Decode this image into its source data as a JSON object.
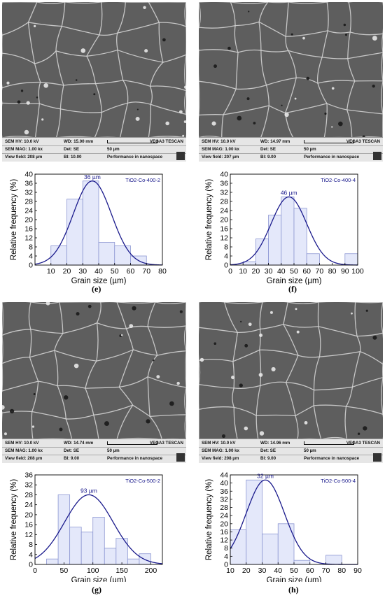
{
  "panels": [
    {
      "id": "e",
      "label": "(e)",
      "sem_info": {
        "hv": "SEM HV: 10.0 kV",
        "wd": "WD: 15.00 mm",
        "mag": "SEM MAG: 1.00 kx",
        "det": "Det: SE",
        "vf": "View field: 208 µm",
        "bi": "BI: 10.00",
        "scale": "50 µm",
        "brand": "VEGA3 TESCAN",
        "footer": "Performance in nanospace"
      },
      "chart_data": {
        "type": "bar",
        "sample": "TiO2-Co-400-2",
        "peak_label": "36 µm",
        "xlabel": "Grain size (µm)",
        "ylabel": "Relative frequency (%)",
        "xlim": [
          0,
          80
        ],
        "ylim": [
          0,
          40
        ],
        "xticks": [
          10,
          20,
          30,
          40,
          50,
          60,
          70,
          80
        ],
        "yticks": [
          0,
          4,
          8,
          12,
          16,
          20,
          24,
          28,
          32,
          36,
          40
        ],
        "bin_edges": [
          10,
          20,
          30,
          40,
          50,
          60,
          70
        ],
        "values": [
          8.5,
          29,
          37,
          10,
          8.5,
          4
        ],
        "fit_mean": 36,
        "fit_sd": 12,
        "fit_peak": 37
      }
    },
    {
      "id": "f",
      "label": "(f)",
      "sem_info": {
        "hv": "SEM HV: 10.0 kV",
        "wd": "WD: 14.97 mm",
        "mag": "SEM MAG: 1.00 kx",
        "det": "Det: SE",
        "vf": "View field: 207 µm",
        "bi": "BI: 9.00",
        "scale": "50 µm",
        "brand": "VEGA3 TESCAN",
        "footer": "Performance in nanospace"
      },
      "chart_data": {
        "type": "bar",
        "sample": "TiO2-Co-400-4",
        "peak_label": "46 µm",
        "xlabel": "Grain size (µm)",
        "ylabel": "Relative frequency (%)",
        "xlim": [
          0,
          100
        ],
        "ylim": [
          0,
          40
        ],
        "xticks": [
          0,
          10,
          20,
          30,
          40,
          50,
          60,
          70,
          80,
          90,
          100
        ],
        "yticks": [
          0,
          4,
          8,
          12,
          16,
          20,
          24,
          28,
          32,
          36,
          40
        ],
        "bin_edges": [
          10,
          20,
          30,
          40,
          50,
          60,
          70,
          80,
          90,
          100
        ],
        "values": [
          1.5,
          11.5,
          22,
          30,
          25,
          5,
          0,
          0,
          5
        ],
        "fit_mean": 46,
        "fit_sd": 14,
        "fit_peak": 30
      }
    },
    {
      "id": "g",
      "label": "(g)",
      "sem_info": {
        "hv": "SEM HV: 10.0 kV",
        "wd": "WD: 14.74 mm",
        "mag": "SEM MAG: 1.00 kx",
        "det": "Det: SE",
        "vf": "View field: 208 µm",
        "bi": "BI: 9.00",
        "scale": "50 µm",
        "brand": "VEGA3 TESCAN",
        "footer": "Performance in nanospace"
      },
      "chart_data": {
        "type": "bar",
        "sample": "TiO2-Co-500-2",
        "peak_label": "93 µm",
        "xlabel": "Grain size (µm)",
        "ylabel": "Relative frequency (%)",
        "xlim": [
          0,
          220
        ],
        "ylim": [
          0,
          36
        ],
        "xticks": [
          0,
          50,
          100,
          150,
          200
        ],
        "yticks": [
          0,
          4,
          8,
          12,
          16,
          20,
          24,
          28,
          32,
          36
        ],
        "bin_edges": [
          20,
          40,
          60,
          80,
          100,
          120,
          140,
          160,
          180,
          200
        ],
        "values": [
          2.2,
          28,
          15,
          13,
          19,
          6.5,
          10.5,
          2.2,
          4.3
        ],
        "fit_mean": 93,
        "fit_sd": 42,
        "fit_peak": 28
      }
    },
    {
      "id": "h",
      "label": "(h)",
      "sem_info": {
        "hv": "SEM HV: 10.0 kV",
        "wd": "WD: 14.96 mm",
        "mag": "SEM MAG: 1.00 kx",
        "det": "Det: SE",
        "vf": "View field: 208 µm",
        "bi": "BI: 9.00",
        "scale": "50 µm",
        "brand": "VEGA3 TESCAN",
        "footer": "Performance in nanospace"
      },
      "chart_data": {
        "type": "bar",
        "sample": "TiO2-Co-500-4",
        "peak_label": "32 µm",
        "xlabel": "Grain size (µm)",
        "ylabel": "Relative frequency (%)",
        "xlim": [
          10,
          90
        ],
        "ylim": [
          0,
          44
        ],
        "xticks": [
          10,
          20,
          30,
          40,
          50,
          60,
          70,
          80,
          90
        ],
        "yticks": [
          0,
          4,
          8,
          12,
          16,
          20,
          24,
          28,
          32,
          36,
          40,
          44
        ],
        "bin_edges": [
          10,
          20,
          30,
          40,
          50,
          60,
          70,
          80
        ],
        "values": [
          17,
          41.5,
          15,
          20,
          2,
          0,
          4.5
        ],
        "fit_mean": 32,
        "fit_sd": 12,
        "fit_peak": 41.5
      }
    }
  ]
}
